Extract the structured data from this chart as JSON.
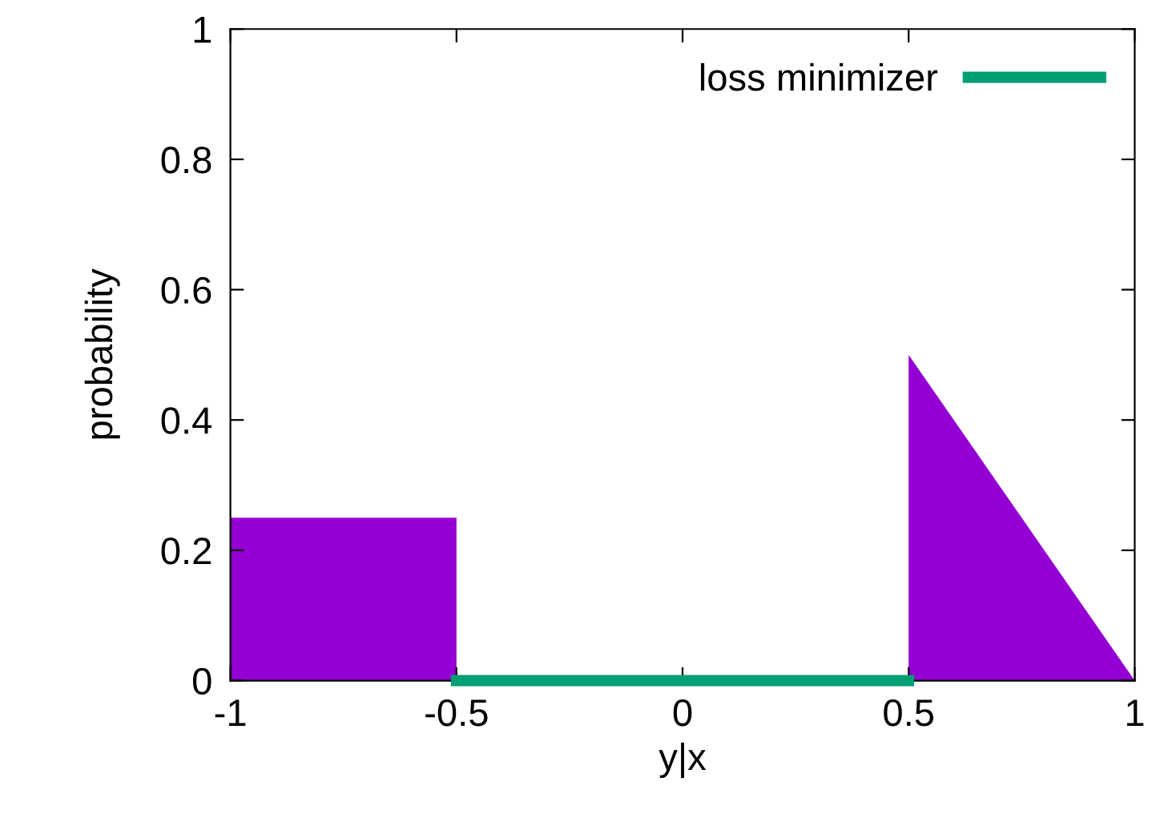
{
  "chart_data": {
    "type": "area",
    "xlabel": "y|x",
    "ylabel": "probability",
    "series": [
      {
        "color": "#9400d3",
        "x": [
          -1,
          -0.5,
          -0.5,
          0.5,
          0.5,
          1
        ],
        "values": [
          0.25,
          0.25,
          0,
          0,
          0.5,
          0
        ]
      },
      {
        "type": "line",
        "name": "loss minimizer",
        "color": "#009e73",
        "x": [
          -0.5,
          0.5
        ],
        "values": [
          0,
          0
        ]
      }
    ],
    "xlim": [
      -1,
      1
    ],
    "xticks": [
      -1,
      -0.5,
      0,
      0.5,
      1
    ],
    "ylim": [
      0,
      1
    ],
    "yticks": [
      0,
      0.2,
      0.4,
      0.6,
      0.8,
      1
    ],
    "grid": false,
    "legend": "top right",
    "marker": "none",
    "line_style": "solid"
  }
}
